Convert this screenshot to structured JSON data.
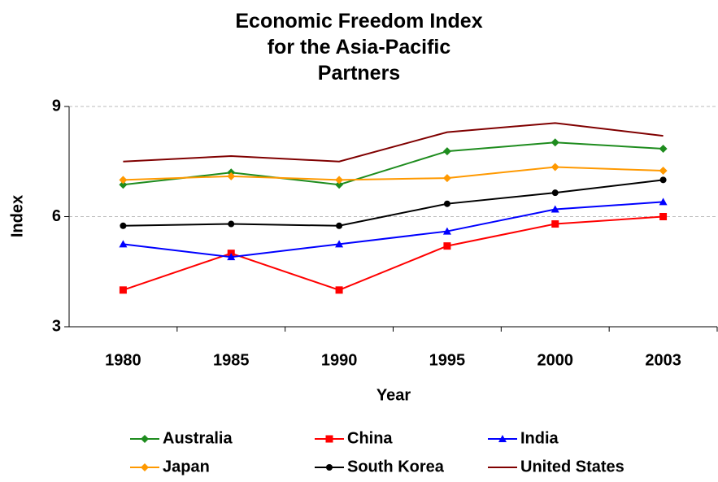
{
  "chart_data": {
    "type": "line",
    "title": "Economic Freedom Index for the Asia-Pacific Partners",
    "x_label": "Year",
    "y_label": "Index",
    "categories": [
      "1980",
      "1985",
      "1990",
      "1995",
      "2000",
      "2003"
    ],
    "series": [
      {
        "name": "Australia",
        "color": "#1e8c1e",
        "marker": "diamond",
        "values": [
          6.87,
          7.2,
          6.87,
          7.78,
          8.02,
          7.85
        ]
      },
      {
        "name": "China",
        "color": "#ff0000",
        "marker": "square",
        "values": [
          4.0,
          5.0,
          4.0,
          5.2,
          5.8,
          6.0
        ]
      },
      {
        "name": "India",
        "color": "#0000ff",
        "marker": "triangle",
        "values": [
          5.25,
          4.9,
          5.25,
          5.6,
          6.2,
          6.4
        ]
      },
      {
        "name": "Japan",
        "color": "#ff9900",
        "marker": "diamond",
        "values": [
          7.0,
          7.1,
          7.0,
          7.05,
          7.35,
          7.25
        ]
      },
      {
        "name": "South Korea",
        "color": "#000000",
        "marker": "circle",
        "values": [
          5.75,
          5.8,
          5.75,
          6.35,
          6.65,
          7.0
        ]
      },
      {
        "name": "United States",
        "color": "#800000",
        "marker": "none",
        "values": [
          7.5,
          7.65,
          7.5,
          8.3,
          8.55,
          8.2
        ]
      }
    ],
    "ylim": [
      3,
      9
    ],
    "yticks": [
      3,
      6,
      9
    ],
    "grid": true,
    "legend": "bottom"
  }
}
